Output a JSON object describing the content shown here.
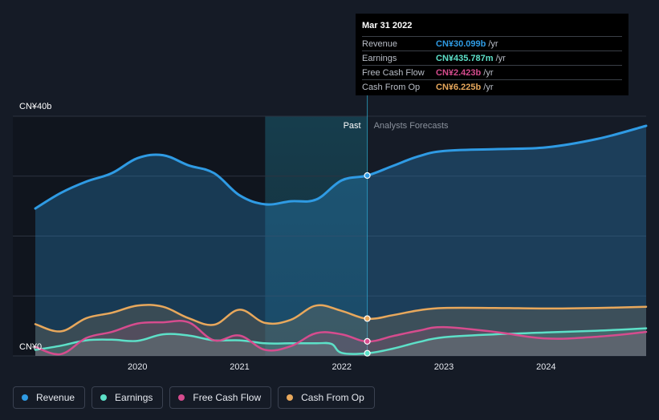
{
  "chart_data": {
    "type": "area",
    "y_axis": {
      "top_label": "CN¥40b",
      "bottom_label": "CN¥0",
      "ylim": [
        0,
        40
      ]
    },
    "x_ticks": [
      {
        "label": "2020",
        "x": 2020.0
      },
      {
        "label": "2021",
        "x": 2021.0
      },
      {
        "label": "2022",
        "x": 2022.0
      },
      {
        "label": "2023",
        "x": 2023.0
      },
      {
        "label": "2024",
        "x": 2024.0
      }
    ],
    "xlim": [
      2018.78,
      2024.98
    ],
    "past_label": "Past",
    "forecast_label": "Analysts Forecasts",
    "divider_x": 2022.25,
    "highlight_start_x": 2021.25,
    "grid": true,
    "series": [
      {
        "name": "Revenue",
        "key": "revenue",
        "color": "#2f9be4",
        "x": [
          2019.0,
          2019.25,
          2019.5,
          2019.75,
          2020.0,
          2020.25,
          2020.5,
          2020.75,
          2021.0,
          2021.25,
          2021.5,
          2021.75,
          2022.0,
          2022.25,
          2022.5,
          2022.75,
          2023.0,
          2023.5,
          2024.0,
          2024.5,
          2024.98
        ],
        "y": [
          24.6,
          27.2,
          29.1,
          30.5,
          33.0,
          33.5,
          31.8,
          30.5,
          26.8,
          25.3,
          25.8,
          26.1,
          29.3,
          30.1,
          31.7,
          33.3,
          34.2,
          34.5,
          34.8,
          36.2,
          38.4
        ]
      },
      {
        "name": "Earnings",
        "key": "earnings",
        "color": "#5de0c8",
        "x": [
          2019.0,
          2019.25,
          2019.5,
          2019.75,
          2020.0,
          2020.25,
          2020.5,
          2020.75,
          2021.0,
          2021.25,
          2021.5,
          2021.75,
          2021.9,
          2022.0,
          2022.25,
          2022.5,
          2022.75,
          2023.0,
          2023.5,
          2024.0,
          2024.5,
          2024.98
        ],
        "y": [
          1.0,
          1.7,
          2.6,
          2.7,
          2.5,
          3.6,
          3.4,
          2.6,
          2.6,
          2.1,
          2.1,
          2.1,
          2.0,
          0.5,
          0.44,
          1.2,
          2.3,
          3.1,
          3.6,
          3.9,
          4.2,
          4.6
        ]
      },
      {
        "name": "Free Cash Flow",
        "key": "fcf",
        "color": "#d64c8e",
        "x": [
          2019.0,
          2019.25,
          2019.5,
          2019.75,
          2020.0,
          2020.25,
          2020.5,
          2020.75,
          2021.0,
          2021.25,
          2021.5,
          2021.75,
          2022.0,
          2022.25,
          2022.5,
          2022.75,
          2023.0,
          2023.5,
          2024.0,
          2024.5,
          2024.98
        ],
        "y": [
          1.5,
          0.3,
          3.0,
          4.0,
          5.4,
          5.6,
          5.6,
          2.6,
          3.4,
          1.0,
          1.6,
          3.8,
          3.6,
          2.4,
          3.3,
          4.2,
          4.8,
          4.0,
          2.9,
          3.2,
          4.0
        ]
      },
      {
        "name": "Cash From Op",
        "key": "cfo",
        "color": "#e8a85c",
        "x": [
          2019.0,
          2019.25,
          2019.5,
          2019.75,
          2020.0,
          2020.25,
          2020.5,
          2020.75,
          2021.0,
          2021.25,
          2021.5,
          2021.75,
          2022.0,
          2022.25,
          2022.5,
          2022.75,
          2023.0,
          2023.5,
          2024.0,
          2024.5,
          2024.98
        ],
        "y": [
          5.3,
          4.1,
          6.3,
          7.2,
          8.4,
          8.2,
          6.3,
          5.2,
          7.7,
          5.5,
          6.0,
          8.4,
          7.5,
          6.2,
          6.8,
          7.6,
          8.0,
          8.0,
          7.9,
          8.0,
          8.2
        ]
      }
    ],
    "tooltip": {
      "date": "Mar 31 2022",
      "x": 2022.25,
      "rows": [
        {
          "key": "revenue",
          "label": "Revenue",
          "value": "CN¥30.099b",
          "unit": "/yr",
          "y": 30.1
        },
        {
          "key": "earnings",
          "label": "Earnings",
          "value": "CN¥435.787m",
          "unit": "/yr",
          "y": 0.44
        },
        {
          "key": "fcf",
          "label": "Free Cash Flow",
          "value": "CN¥2.423b",
          "unit": "/yr",
          "y": 2.42
        },
        {
          "key": "cfo",
          "label": "Cash From Op",
          "value": "CN¥6.225b",
          "unit": "/yr",
          "y": 6.23
        }
      ]
    }
  },
  "legend": [
    {
      "key": "revenue",
      "label": "Revenue",
      "color": "#2f9be4"
    },
    {
      "key": "earnings",
      "label": "Earnings",
      "color": "#5de0c8"
    },
    {
      "key": "fcf",
      "label": "Free Cash Flow",
      "color": "#d64c8e"
    },
    {
      "key": "cfo",
      "label": "Cash From Op",
      "color": "#e8a85c"
    }
  ]
}
